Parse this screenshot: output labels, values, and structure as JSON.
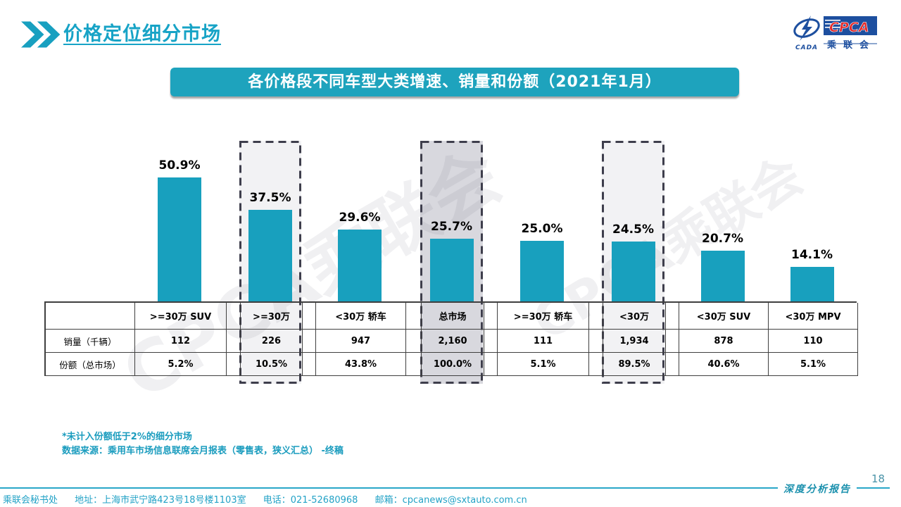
{
  "header": {
    "title": "价格定位细分市场",
    "logo": {
      "cpca": "CPCA",
      "cada": "CADA",
      "cn_name": "乘联会"
    }
  },
  "banner": {
    "title": "各价格段不同车型大类增速、销量和份额（2021年1月）"
  },
  "watermark": {
    "text": "CPCA乘联会"
  },
  "chart_data": {
    "type": "bar",
    "title": "各价格段不同车型大类增速、销量和份额（2021年1月）",
    "categories": [
      ">=30万 SUV",
      ">=30万",
      "<30万 轿车",
      "总市场",
      ">=30万 轿车",
      "<30万",
      "<30万 SUV",
      "<30万 MPV"
    ],
    "series": [
      {
        "name": "增速",
        "values": [
          50.9,
          37.5,
          29.6,
          25.7,
          25.0,
          24.5,
          20.7,
          14.1
        ],
        "labels": [
          "50.9%",
          "37.5%",
          "29.6%",
          "25.7%",
          "25.0%",
          "24.5%",
          "20.7%",
          "14.1%"
        ]
      }
    ],
    "value_suffix": "%",
    "ylim": [
      0,
      60
    ],
    "grid": false,
    "legend": "none",
    "bar_color": "#18a0be",
    "table": {
      "row_headers": [
        "销量（千辆）",
        "份额（总市场）"
      ],
      "rows": [
        [
          "112",
          "226",
          "947",
          "2,160",
          "111",
          "1,934",
          "878",
          "110"
        ],
        [
          "5.2%",
          "10.5%",
          "43.8%",
          "100.0%",
          "5.1%",
          "89.5%",
          "40.6%",
          "5.1%"
        ]
      ]
    },
    "highlights": [
      {
        "category_index": 1,
        "shade": "light"
      },
      {
        "category_index": 3,
        "shade": "dark"
      },
      {
        "category_index": 5,
        "shade": "light"
      }
    ],
    "highlight_colors": {
      "light": "#f2f2f4",
      "dark": "#d8d8de",
      "border": "#3e3e4c"
    }
  },
  "notes": {
    "line1": "*未计入份额低于2%的细分市场",
    "line2": "数据来源：乘用车市场信息联席会月报表（零售表，狭义汇总）  -终稿"
  },
  "footer": {
    "secretariat": "乘联会秘书处",
    "address": "地址：上海市武宁路423号18号楼1103室",
    "phone": "电话：021-52680968",
    "email": "邮箱：cpcanews@sxtauto.com.cn",
    "report_label": "深度分析报告",
    "page_number": "18"
  }
}
